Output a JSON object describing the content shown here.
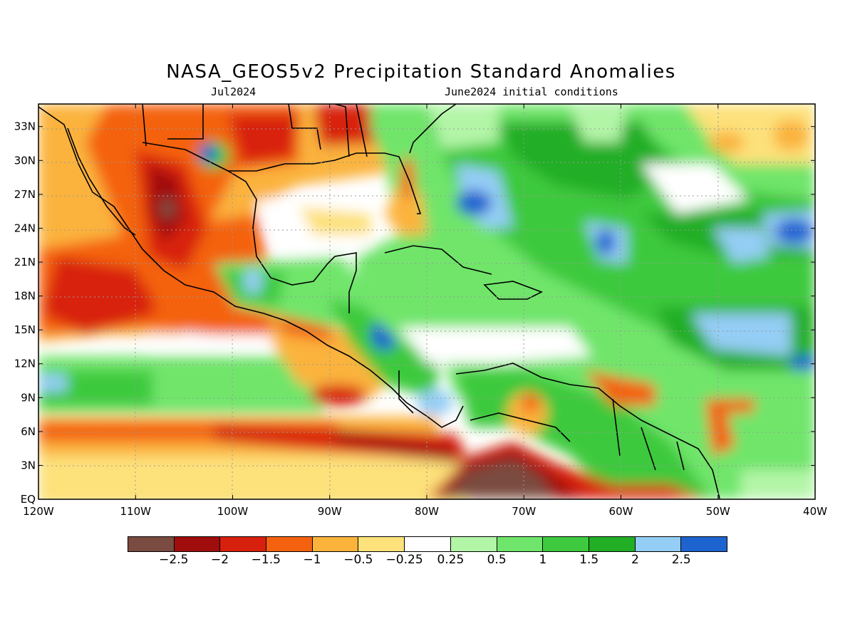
{
  "title": "NASA_GEOS5v2 Precipitation Standard Anomalies",
  "subtitle_left": "Jul2024",
  "subtitle_right": "June2024 initial conditions",
  "lat_labels": [
    "EQ",
    "3N",
    "6N",
    "9N",
    "12N",
    "15N",
    "18N",
    "21N",
    "24N",
    "27N",
    "30N",
    "33N"
  ],
  "lon_labels": [
    "120W",
    "110W",
    "100W",
    "90W",
    "80W",
    "70W",
    "60W",
    "50W",
    "40W"
  ],
  "colorbar": {
    "labels": [
      "−2.5",
      "−2",
      "−1.5",
      "−1",
      "−0.5",
      "−0.25",
      "0.25",
      "0.5",
      "1",
      "1.5",
      "2",
      "2.5"
    ],
    "colors": [
      "#7a4b40",
      "#a00d0d",
      "#d8200e",
      "#f4620f",
      "#fbb33c",
      "#fde17a",
      "#ffffff",
      "#b3f5a7",
      "#6fe56b",
      "#3ec93e",
      "#22ae25",
      "#94cdf5",
      "#1d64d1"
    ]
  }
}
